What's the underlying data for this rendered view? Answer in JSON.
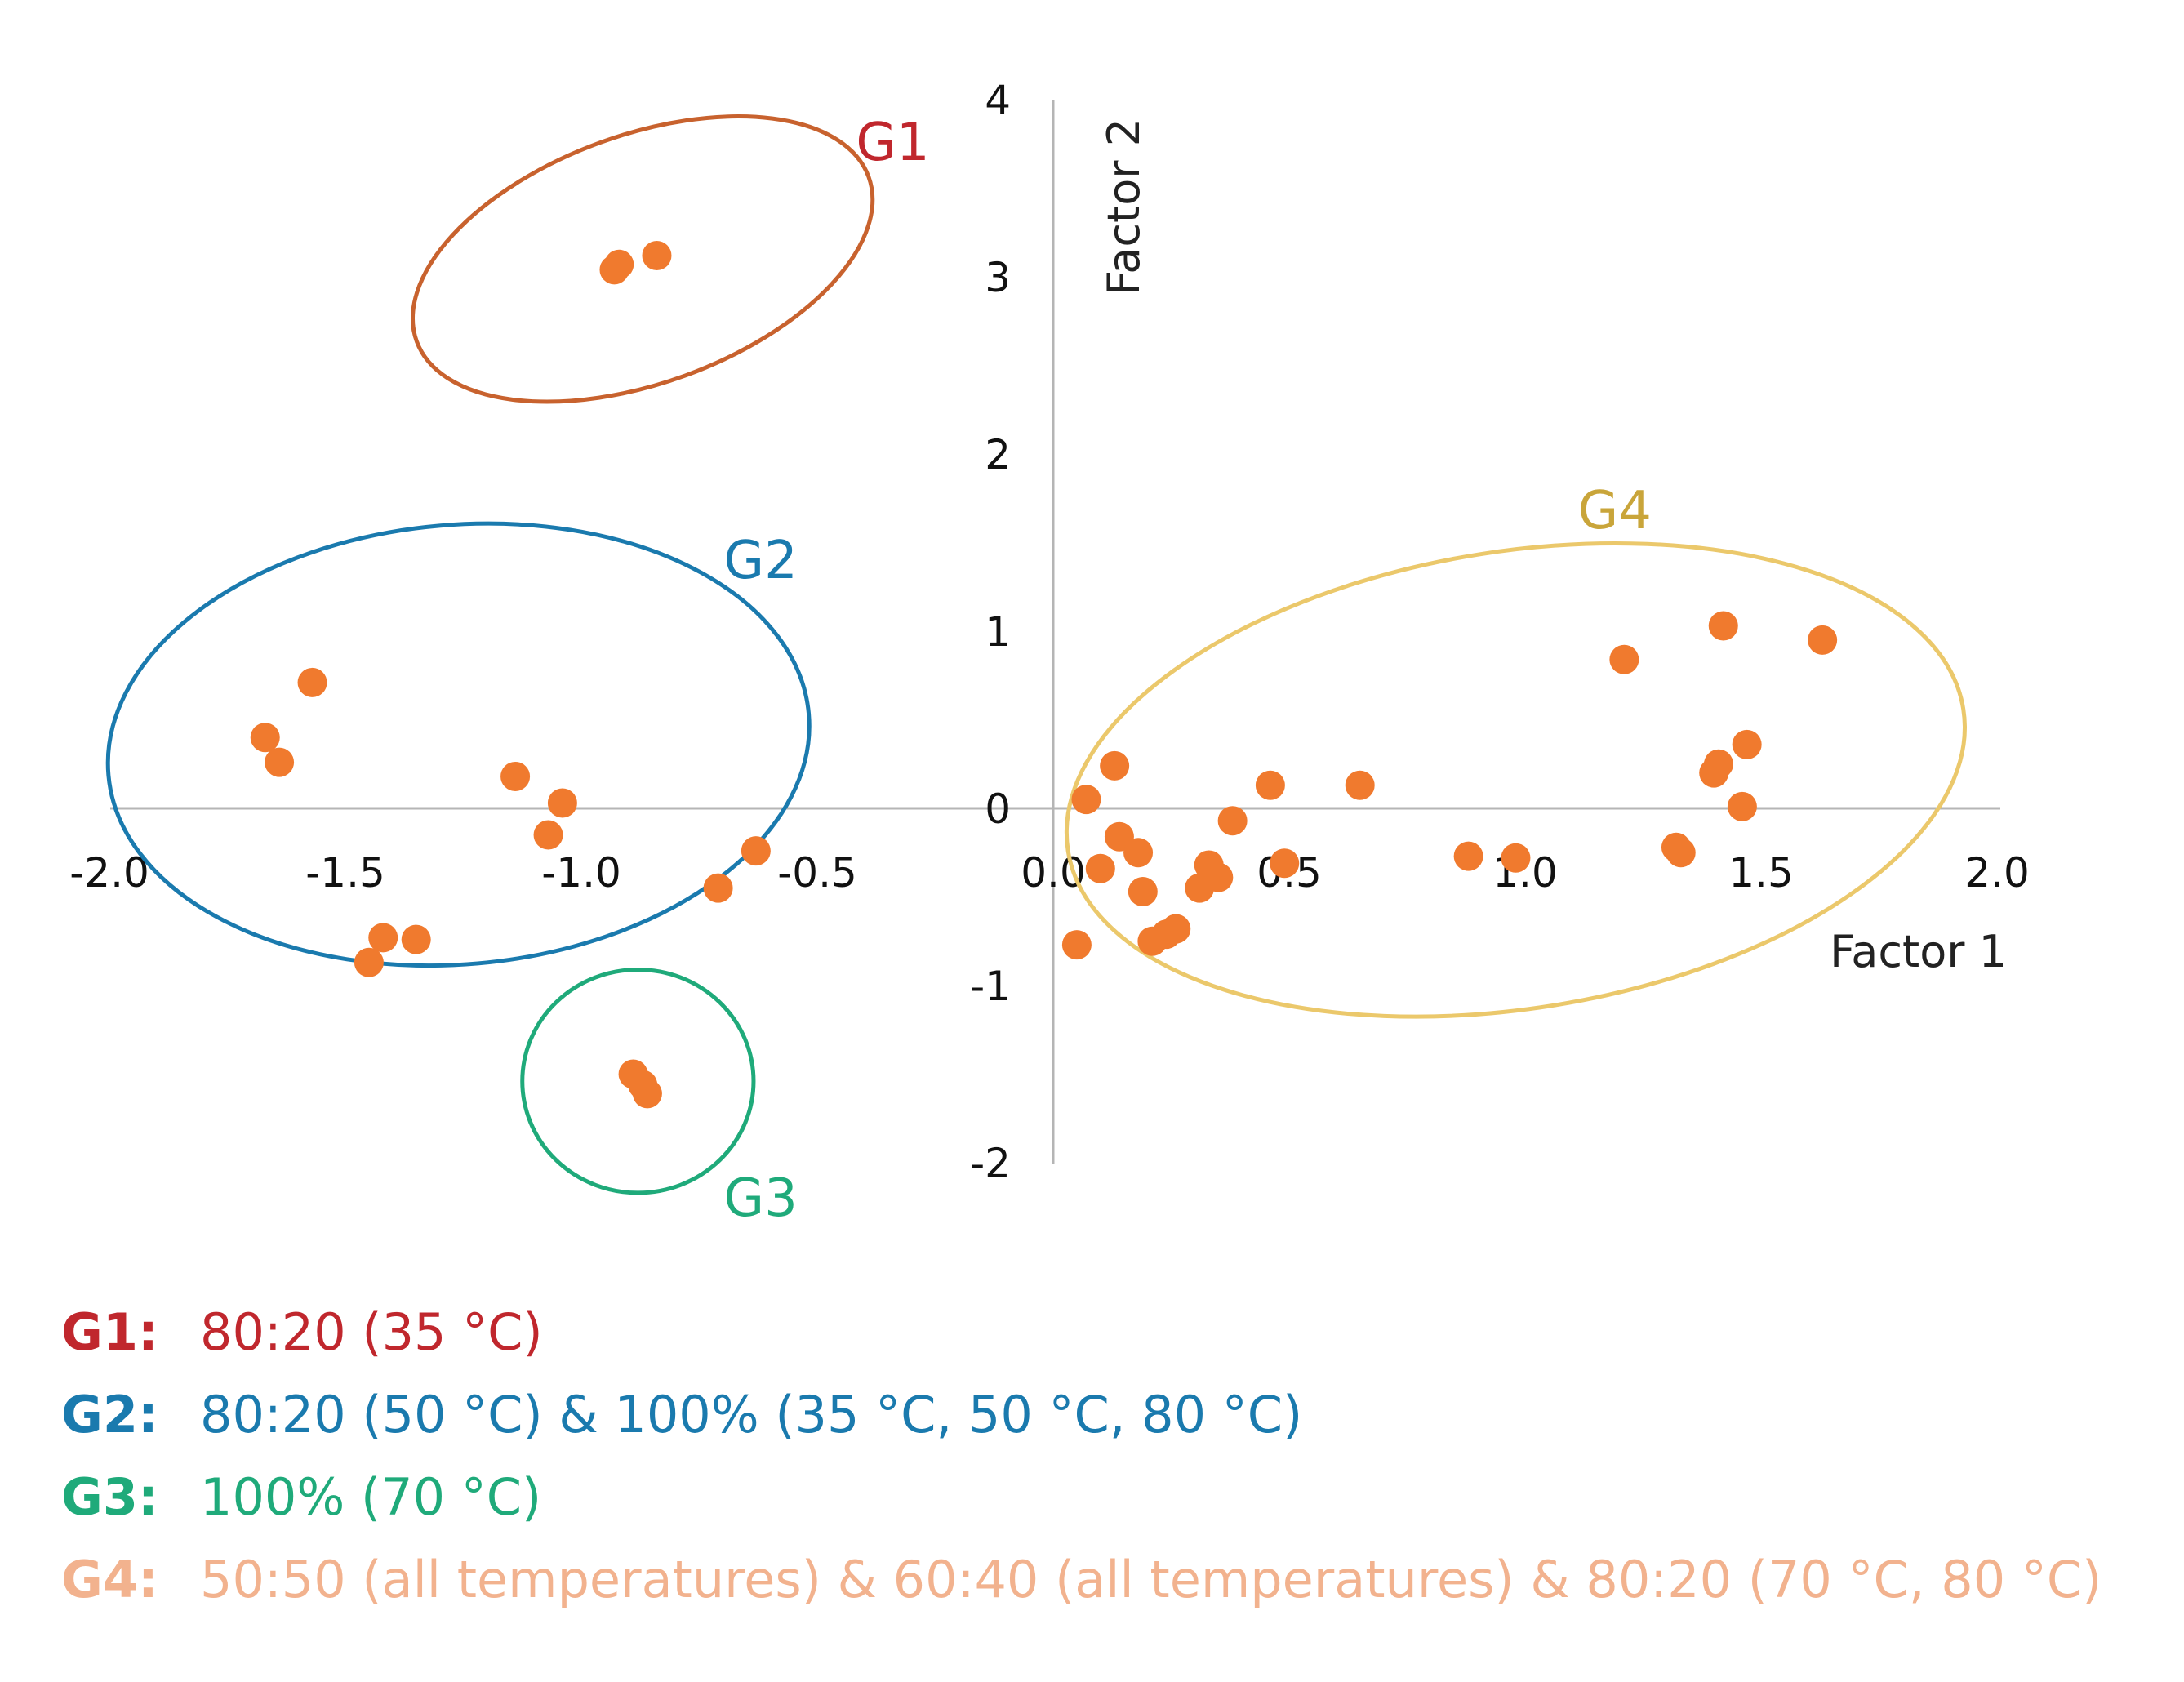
{
  "chart_data": {
    "type": "scatter",
    "title": "",
    "xlabel": "Factor 1",
    "ylabel": "Factor 2",
    "xlim": [
      -2.0,
      2.0
    ],
    "ylim": [
      -2,
      4
    ],
    "x_ticks": [
      "-2.0",
      "-1.5",
      "-1.0",
      "-0.5",
      "0.0",
      "0.5",
      "1.0",
      "1.5",
      "2.0"
    ],
    "x_tick_values": [
      -2.0,
      -1.5,
      -1.0,
      -0.5,
      0.0,
      0.5,
      1.0,
      1.5,
      2.0
    ],
    "y_ticks": [
      "4",
      "3",
      "2",
      "1",
      "0",
      "-1",
      "-2"
    ],
    "y_tick_values": [
      4,
      3,
      2,
      1,
      0,
      -1,
      -2
    ],
    "grid": false,
    "marker_color": "#F07A2E",
    "points": [
      {
        "x": -0.92,
        "y": 3.07
      },
      {
        "x": -0.93,
        "y": 3.04
      },
      {
        "x": -0.84,
        "y": 3.12
      },
      {
        "x": -1.57,
        "y": 0.71
      },
      {
        "x": -1.67,
        "y": 0.4
      },
      {
        "x": -1.64,
        "y": 0.26
      },
      {
        "x": -1.14,
        "y": 0.18
      },
      {
        "x": -1.04,
        "y": 0.03
      },
      {
        "x": -1.07,
        "y": -0.15
      },
      {
        "x": -0.63,
        "y": -0.24
      },
      {
        "x": -0.71,
        "y": -0.45
      },
      {
        "x": -1.42,
        "y": -0.73
      },
      {
        "x": -1.35,
        "y": -0.74
      },
      {
        "x": -1.45,
        "y": -0.87
      },
      {
        "x": -0.89,
        "y": -1.5
      },
      {
        "x": -0.87,
        "y": -1.56
      },
      {
        "x": -0.86,
        "y": -1.61
      },
      {
        "x": 0.07,
        "y": 0.05
      },
      {
        "x": 0.13,
        "y": 0.24
      },
      {
        "x": 0.14,
        "y": -0.16
      },
      {
        "x": 0.18,
        "y": -0.25
      },
      {
        "x": 0.1,
        "y": -0.34
      },
      {
        "x": 0.19,
        "y": -0.47
      },
      {
        "x": 0.05,
        "y": -0.77
      },
      {
        "x": 0.21,
        "y": -0.75
      },
      {
        "x": 0.24,
        "y": -0.71
      },
      {
        "x": 0.26,
        "y": -0.68
      },
      {
        "x": 0.31,
        "y": -0.45
      },
      {
        "x": 0.33,
        "y": -0.32
      },
      {
        "x": 0.35,
        "y": -0.39
      },
      {
        "x": 0.38,
        "y": -0.07
      },
      {
        "x": 0.46,
        "y": 0.13
      },
      {
        "x": 0.49,
        "y": -0.31
      },
      {
        "x": 0.65,
        "y": 0.13
      },
      {
        "x": 0.88,
        "y": -0.27
      },
      {
        "x": 0.98,
        "y": -0.28
      },
      {
        "x": 1.21,
        "y": 0.84
      },
      {
        "x": 1.42,
        "y": 1.03
      },
      {
        "x": 1.63,
        "y": 0.95
      },
      {
        "x": 1.47,
        "y": 0.36
      },
      {
        "x": 1.41,
        "y": 0.25
      },
      {
        "x": 1.4,
        "y": 0.2
      },
      {
        "x": 1.46,
        "y": 0.01
      },
      {
        "x": 1.32,
        "y": -0.22
      },
      {
        "x": 1.33,
        "y": -0.25
      }
    ],
    "group_ellipses": [
      {
        "name": "G1",
        "color": "#C8622E",
        "cx": -0.87,
        "cy": 3.1,
        "rx": 0.52,
        "ry": 0.7,
        "angle": -20
      },
      {
        "name": "G2",
        "color": "#1A7AAE",
        "cx": -1.26,
        "cy": 0.36,
        "rx": 0.76,
        "ry": 1.24,
        "angle": -5
      },
      {
        "name": "G3",
        "color": "#1FAA7A",
        "cx": -0.88,
        "cy": -1.54,
        "rx": 0.25,
        "ry": 0.63,
        "angle": 0
      },
      {
        "name": "G4",
        "color": "#EBC86B",
        "cx": 0.98,
        "cy": 0.16,
        "rx": 0.98,
        "ry": 1.29,
        "angle": -9
      }
    ],
    "group_labels": [
      {
        "text": "G1",
        "color": "#C0272D",
        "x": -0.34,
        "y": 3.66
      },
      {
        "text": "G2",
        "color": "#1A7AAE",
        "x": -0.62,
        "y": 1.3
      },
      {
        "text": "G3",
        "color": "#1FAA7A",
        "x": -0.62,
        "y": -2.3
      },
      {
        "text": "G4",
        "color": "#C9A53A",
        "x": 1.19,
        "y": 1.58
      }
    ]
  },
  "legend": [
    {
      "key": "G1:",
      "text": "80:20 (35 °C)",
      "key_color": "#C0272D",
      "text_color": "#C0272D"
    },
    {
      "key": "G2:",
      "text": "80:20 (50 °C) & 100% (35 °C, 50 °C, 80 °C)",
      "key_color": "#1A7AAE",
      "text_color": "#1A7AAE"
    },
    {
      "key": "G3:",
      "text": "100% (70 °C)",
      "key_color": "#1FAA7A",
      "text_color": "#1FAA7A"
    },
    {
      "key": "G4:",
      "text": "50:50 (all temperatures) & 60:40 (all temperatures) & 80:20 (70 °C, 80 °C)",
      "key_color": "#F2B28E",
      "text_color": "#F2B28E"
    }
  ]
}
